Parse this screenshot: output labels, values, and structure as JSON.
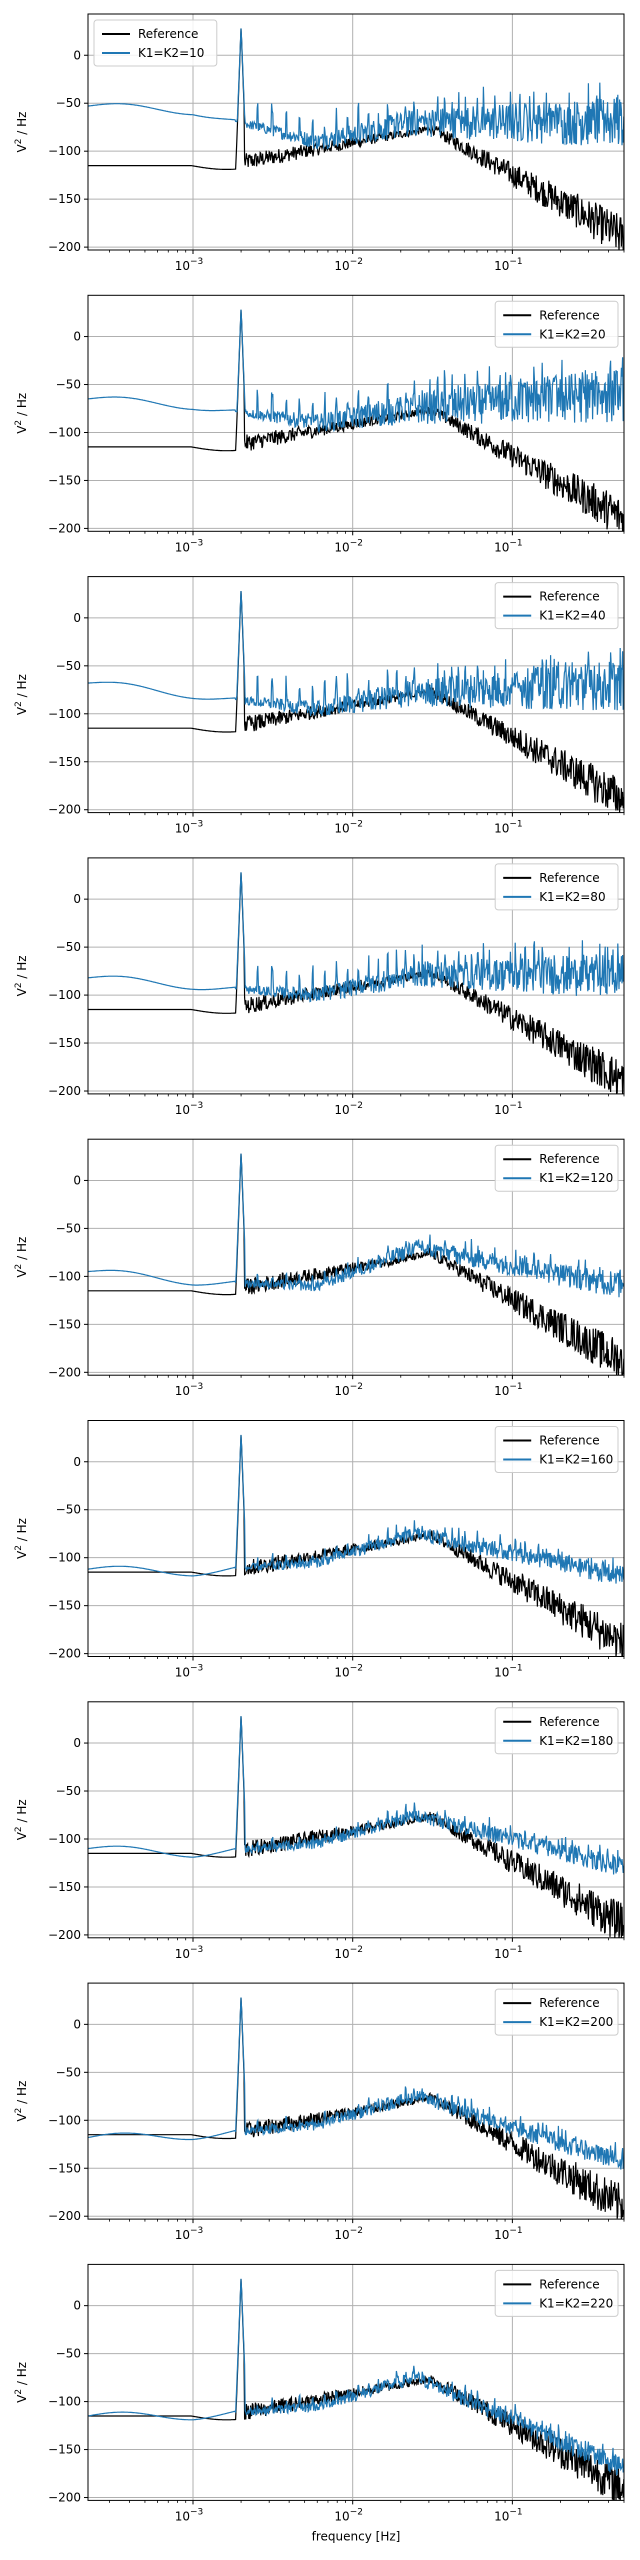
{
  "figure": {
    "xlabel": "frequency [Hz]",
    "ylabel_base": "V",
    "ylabel_sup": "2",
    "ylabel_tail": " / Hz"
  },
  "style": {
    "reference_color": "#000000",
    "series_color": "#1f77b4",
    "grid_color": "#b0b0b0"
  },
  "chart_data": [
    {
      "type": "line",
      "x_scale": "log",
      "xlim": [
        0.00022,
        0.5
      ],
      "ylim": [
        -203,
        43
      ],
      "x_ticks": [
        {
          "base": "10",
          "exp": "−3",
          "value": 0.001
        },
        {
          "base": "10",
          "exp": "−2",
          "value": 0.01
        },
        {
          "base": "10",
          "exp": "−1",
          "value": 0.1
        }
      ],
      "y_ticks": [
        0,
        -50,
        -100,
        -150,
        -200
      ],
      "grid": true,
      "legend_position": "upper-left",
      "series": [
        {
          "name": "Reference",
          "color": "#000000"
        },
        {
          "name": "K1=K2=10",
          "color": "#1f77b4"
        }
      ],
      "peak_hz": 0.002,
      "peak_db": 30,
      "series_floor_db": [
        -53,
        -58,
        -90,
        -70,
        -70
      ],
      "reference_floor_db": [
        -115,
        -115,
        -75,
        -190
      ],
      "knee_hz": 0.03
    },
    {
      "type": "line",
      "x_scale": "log",
      "xlim": [
        0.00022,
        0.5
      ],
      "ylim": [
        -203,
        43
      ],
      "x_ticks": [
        {
          "base": "10",
          "exp": "−3",
          "value": 0.001
        },
        {
          "base": "10",
          "exp": "−2",
          "value": 0.01
        },
        {
          "base": "10",
          "exp": "−1",
          "value": 0.1
        }
      ],
      "y_ticks": [
        0,
        -50,
        -100,
        -150,
        -200
      ],
      "grid": true,
      "legend_position": "upper-right",
      "series": [
        {
          "name": "Reference",
          "color": "#000000"
        },
        {
          "name": "K1=K2=20",
          "color": "#1f77b4"
        }
      ],
      "peak_hz": 0.002,
      "peak_db": 30,
      "series_floor_db": [
        -65,
        -72,
        -90,
        -75,
        -60
      ],
      "reference_floor_db": [
        -115,
        -115,
        -75,
        -190
      ],
      "knee_hz": 0.03
    },
    {
      "type": "line",
      "x_scale": "log",
      "xlim": [
        0.00022,
        0.5
      ],
      "ylim": [
        -203,
        43
      ],
      "x_ticks": [
        {
          "base": "10",
          "exp": "−3",
          "value": 0.001
        },
        {
          "base": "10",
          "exp": "−2",
          "value": 0.01
        },
        {
          "base": "10",
          "exp": "−1",
          "value": 0.1
        }
      ],
      "y_ticks": [
        0,
        -50,
        -100,
        -150,
        -200
      ],
      "grid": true,
      "legend_position": "upper-right",
      "series": [
        {
          "name": "Reference",
          "color": "#000000"
        },
        {
          "name": "K1=K2=40",
          "color": "#1f77b4"
        }
      ],
      "peak_hz": 0.002,
      "peak_db": 30,
      "series_floor_db": [
        -68,
        -80,
        -95,
        -78,
        -70
      ],
      "reference_floor_db": [
        -115,
        -115,
        -75,
        -190
      ],
      "knee_hz": 0.03
    },
    {
      "type": "line",
      "x_scale": "log",
      "xlim": [
        0.00022,
        0.5
      ],
      "ylim": [
        -203,
        43
      ],
      "x_ticks": [
        {
          "base": "10",
          "exp": "−3",
          "value": 0.001
        },
        {
          "base": "10",
          "exp": "−2",
          "value": 0.01
        },
        {
          "base": "10",
          "exp": "−1",
          "value": 0.1
        }
      ],
      "y_ticks": [
        0,
        -50,
        -100,
        -150,
        -200
      ],
      "grid": true,
      "legend_position": "upper-right",
      "series": [
        {
          "name": "Reference",
          "color": "#000000"
        },
        {
          "name": "K1=K2=80",
          "color": "#1f77b4"
        }
      ],
      "peak_hz": 0.002,
      "peak_db": 30,
      "series_floor_db": [
        -82,
        -90,
        -100,
        -78,
        -80
      ],
      "reference_floor_db": [
        -115,
        -115,
        -75,
        -190
      ],
      "knee_hz": 0.03
    },
    {
      "type": "line",
      "x_scale": "log",
      "xlim": [
        0.00022,
        0.5
      ],
      "ylim": [
        -203,
        43
      ],
      "x_ticks": [
        {
          "base": "10",
          "exp": "−3",
          "value": 0.001
        },
        {
          "base": "10",
          "exp": "−2",
          "value": 0.01
        },
        {
          "base": "10",
          "exp": "−1",
          "value": 0.1
        }
      ],
      "y_ticks": [
        0,
        -50,
        -100,
        -150,
        -200
      ],
      "grid": true,
      "legend_position": "upper-right",
      "series": [
        {
          "name": "Reference",
          "color": "#000000"
        },
        {
          "name": "K1=K2=120",
          "color": "#1f77b4"
        }
      ],
      "peak_hz": 0.002,
      "peak_db": 30,
      "series_floor_db": [
        -95,
        -105,
        -110,
        -70,
        -110
      ],
      "reference_floor_db": [
        -115,
        -115,
        -75,
        -190
      ],
      "knee_hz": 0.03
    },
    {
      "type": "line",
      "x_scale": "log",
      "xlim": [
        0.00022,
        0.5
      ],
      "ylim": [
        -203,
        43
      ],
      "x_ticks": [
        {
          "base": "10",
          "exp": "−3",
          "value": 0.001
        },
        {
          "base": "10",
          "exp": "−2",
          "value": 0.01
        },
        {
          "base": "10",
          "exp": "−1",
          "value": 0.1
        }
      ],
      "y_ticks": [
        0,
        -50,
        -100,
        -150,
        -200
      ],
      "grid": true,
      "legend_position": "upper-right",
      "series": [
        {
          "name": "Reference",
          "color": "#000000"
        },
        {
          "name": "K1=K2=160",
          "color": "#1f77b4"
        }
      ],
      "peak_hz": 0.002,
      "peak_db": 30,
      "series_floor_db": [
        -112,
        -115,
        -105,
        -75,
        -120
      ],
      "reference_floor_db": [
        -115,
        -115,
        -75,
        -190
      ],
      "knee_hz": 0.03
    },
    {
      "type": "line",
      "x_scale": "log",
      "xlim": [
        0.00022,
        0.5
      ],
      "ylim": [
        -203,
        43
      ],
      "x_ticks": [
        {
          "base": "10",
          "exp": "−3",
          "value": 0.001
        },
        {
          "base": "10",
          "exp": "−2",
          "value": 0.01
        },
        {
          "base": "10",
          "exp": "−1",
          "value": 0.1
        }
      ],
      "y_ticks": [
        0,
        -50,
        -100,
        -150,
        -200
      ],
      "grid": true,
      "legend_position": "upper-right",
      "series": [
        {
          "name": "Reference",
          "color": "#000000"
        },
        {
          "name": "K1=K2=180",
          "color": "#1f77b4"
        }
      ],
      "peak_hz": 0.002,
      "peak_db": 30,
      "series_floor_db": [
        -110,
        -115,
        -105,
        -75,
        -130
      ],
      "reference_floor_db": [
        -115,
        -115,
        -75,
        -190
      ],
      "knee_hz": 0.03
    },
    {
      "type": "line",
      "x_scale": "log",
      "xlim": [
        0.00022,
        0.5
      ],
      "ylim": [
        -203,
        43
      ],
      "x_ticks": [
        {
          "base": "10",
          "exp": "−3",
          "value": 0.001
        },
        {
          "base": "10",
          "exp": "−2",
          "value": 0.01
        },
        {
          "base": "10",
          "exp": "−1",
          "value": 0.1
        }
      ],
      "y_ticks": [
        0,
        -50,
        -100,
        -150,
        -200
      ],
      "grid": true,
      "legend_position": "upper-right",
      "series": [
        {
          "name": "Reference",
          "color": "#000000"
        },
        {
          "name": "K1=K2=200",
          "color": "#1f77b4"
        }
      ],
      "peak_hz": 0.002,
      "peak_db": 30,
      "series_floor_db": [
        -118,
        -116,
        -105,
        -75,
        -145
      ],
      "reference_floor_db": [
        -115,
        -115,
        -75,
        -190
      ],
      "knee_hz": 0.03
    },
    {
      "type": "line",
      "x_scale": "log",
      "xlim": [
        0.00022,
        0.5
      ],
      "ylim": [
        -203,
        43
      ],
      "x_ticks": [
        {
          "base": "10",
          "exp": "−3",
          "value": 0.001
        },
        {
          "base": "10",
          "exp": "−2",
          "value": 0.01
        },
        {
          "base": "10",
          "exp": "−1",
          "value": 0.1
        }
      ],
      "y_ticks": [
        0,
        -50,
        -100,
        -150,
        -200
      ],
      "grid": true,
      "legend_position": "upper-right",
      "series": [
        {
          "name": "Reference",
          "color": "#000000"
        },
        {
          "name": "K1=K2=220",
          "color": "#1f77b4"
        }
      ],
      "peak_hz": 0.002,
      "peak_db": 30,
      "series_floor_db": [
        -115,
        -115,
        -105,
        -75,
        -170
      ],
      "reference_floor_db": [
        -115,
        -115,
        -75,
        -190
      ],
      "knee_hz": 0.03
    }
  ]
}
